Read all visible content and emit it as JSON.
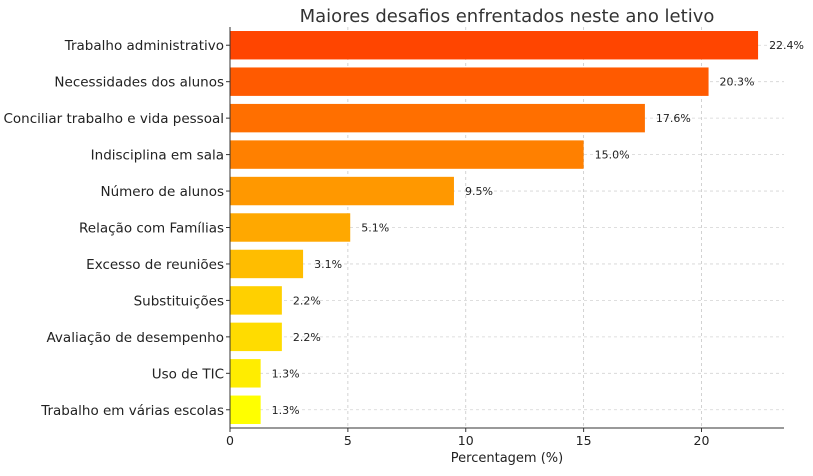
{
  "chart_data": {
    "type": "bar",
    "orientation": "horizontal",
    "title": "Maiores desafios enfrentados neste ano letivo",
    "xlabel": "Percentagem (%)",
    "ylabel": "",
    "xlim": [
      0,
      23.5
    ],
    "x_ticks": [
      0,
      5,
      10,
      15,
      20
    ],
    "grid": true,
    "categories": [
      "Trabalho administrativo",
      "Necessidades dos alunos",
      "Conciliar trabalho e vida pessoal",
      "Indisciplina em sala",
      "Número de alunos",
      "Relação com Famílias",
      "Excesso de reuniões",
      "Substituições",
      "Avaliação de desempenho",
      "Uso de TIC",
      "Trabalho em várias escolas"
    ],
    "values": [
      22.4,
      20.3,
      17.6,
      15.0,
      9.5,
      5.1,
      3.1,
      2.2,
      2.2,
      1.3,
      1.3
    ],
    "value_labels": [
      "22.4%",
      "20.3%",
      "17.6%",
      "15.0%",
      "9.5%",
      "5.1%",
      "3.1%",
      "2.2%",
      "2.2%",
      "1.3%",
      "1.3%"
    ],
    "colors": [
      "#ff4500",
      "#ff5a00",
      "#ff6f00",
      "#ff8000",
      "#ff9800",
      "#ffa800",
      "#ffbd00",
      "#ffd000",
      "#ffdc00",
      "#ffed00",
      "#ffff00"
    ]
  }
}
